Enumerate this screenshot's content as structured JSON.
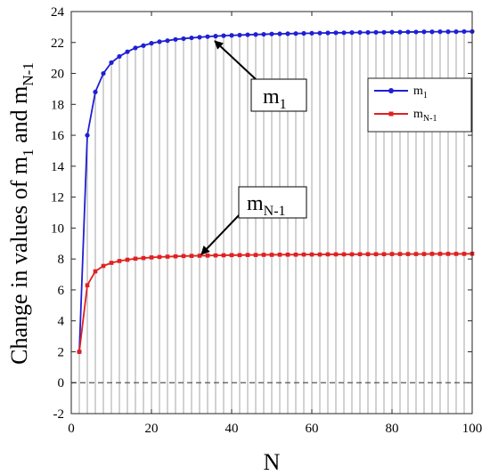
{
  "chart_data": {
    "type": "line",
    "xlabel": "N",
    "ylabel": "Change in values of m1 and mN-1",
    "ylabel_parts": {
      "prefix": "Change in values of m",
      "sub1": "1",
      "mid": " and m",
      "sub2": "N-1"
    },
    "xlim": [
      0,
      100
    ],
    "ylim": [
      -2,
      24
    ],
    "x_ticks": [
      0,
      20,
      40,
      60,
      80,
      100
    ],
    "y_ticks": [
      -2,
      0,
      2,
      4,
      6,
      8,
      10,
      12,
      14,
      16,
      18,
      20,
      22,
      24
    ],
    "grid": false,
    "legend_position": "top-right",
    "zero_line": {
      "y": 0,
      "style": "dashed",
      "color": "#555555"
    },
    "stems": {
      "color": "#a6a6a6",
      "description_of_x": "vertical drop lines at every even N from m1 value"
    },
    "series": [
      {
        "name": "m1",
        "name_base": "m",
        "name_sub": "1",
        "color": "#1f1fd6",
        "marker": "circle",
        "x": [
          2,
          4,
          6,
          8,
          10,
          12,
          14,
          16,
          18,
          20,
          22,
          24,
          26,
          28,
          30,
          32,
          34,
          36,
          38,
          40,
          42,
          44,
          46,
          48,
          50,
          52,
          54,
          56,
          58,
          60,
          62,
          64,
          66,
          68,
          70,
          72,
          74,
          76,
          78,
          80,
          82,
          84,
          86,
          88,
          90,
          92,
          94,
          96,
          98,
          100
        ],
        "values": [
          2.0,
          16.0,
          18.8,
          20.0,
          20.7,
          21.1,
          21.4,
          21.65,
          21.8,
          21.95,
          22.05,
          22.12,
          22.2,
          22.25,
          22.3,
          22.34,
          22.38,
          22.41,
          22.44,
          22.46,
          22.48,
          22.5,
          22.52,
          22.53,
          22.55,
          22.56,
          22.57,
          22.58,
          22.59,
          22.6,
          22.61,
          22.62,
          22.63,
          22.63,
          22.64,
          22.65,
          22.65,
          22.66,
          22.66,
          22.67,
          22.67,
          22.68,
          22.68,
          22.69,
          22.69,
          22.7,
          22.7,
          22.7,
          22.71,
          22.71
        ]
      },
      {
        "name": "mN-1",
        "name_base": "m",
        "name_sub": "N-1",
        "color": "#e02020",
        "marker": "square",
        "x": [
          2,
          4,
          6,
          8,
          10,
          12,
          14,
          16,
          18,
          20,
          22,
          24,
          26,
          28,
          30,
          32,
          34,
          36,
          38,
          40,
          42,
          44,
          46,
          48,
          50,
          52,
          54,
          56,
          58,
          60,
          62,
          64,
          66,
          68,
          70,
          72,
          74,
          76,
          78,
          80,
          82,
          84,
          86,
          88,
          90,
          92,
          94,
          96,
          98,
          100
        ],
        "values": [
          2.0,
          6.3,
          7.2,
          7.55,
          7.75,
          7.87,
          7.95,
          8.02,
          8.06,
          8.1,
          8.13,
          8.15,
          8.17,
          8.19,
          8.2,
          8.21,
          8.22,
          8.23,
          8.24,
          8.25,
          8.25,
          8.26,
          8.26,
          8.27,
          8.27,
          8.28,
          8.28,
          8.28,
          8.29,
          8.29,
          8.29,
          8.3,
          8.3,
          8.3,
          8.3,
          8.31,
          8.31,
          8.31,
          8.31,
          8.32,
          8.32,
          8.32,
          8.32,
          8.32,
          8.33,
          8.33,
          8.33,
          8.33,
          8.33,
          8.34
        ]
      }
    ],
    "annotations": [
      {
        "name": "callout-m1",
        "base": "m",
        "sub": "1",
        "arrow_to": [
          34,
          22.38
        ]
      },
      {
        "name": "callout-mN-1",
        "base": "m",
        "sub": "N-1",
        "arrow_to": [
          32,
          8.21
        ]
      }
    ]
  }
}
